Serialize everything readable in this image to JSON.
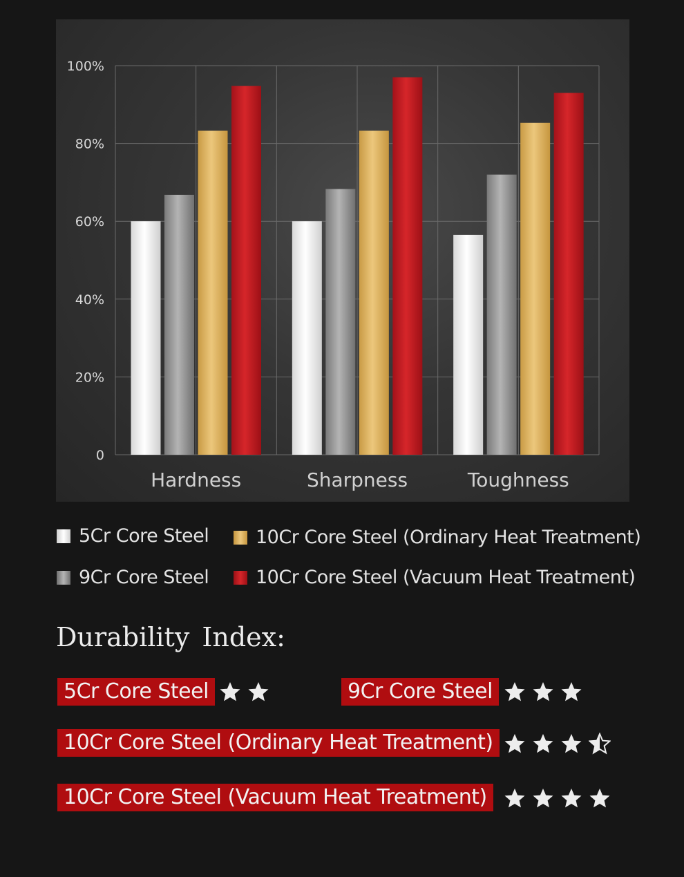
{
  "chart_data": {
    "type": "bar",
    "categories": [
      "Hardness",
      "Sharpness",
      "Toughness"
    ],
    "series": [
      {
        "name": "5Cr Core Steel",
        "values": [
          60,
          60,
          56.5
        ]
      },
      {
        "name": "9Cr Core Steel",
        "values": [
          66.8,
          68.3,
          72
        ]
      },
      {
        "name": "10Cr Core Steel (Ordinary Heat Treatment)",
        "values": [
          83.3,
          83.3,
          85.3
        ]
      },
      {
        "name": "10Cr Core Steel (Vacuum Heat Treatment)",
        "values": [
          94.8,
          97,
          93
        ]
      }
    ],
    "ylim": [
      0,
      100
    ],
    "yticks": [
      "100%",
      "80%",
      "60%",
      "40%",
      "20%",
      "0"
    ],
    "ytick_values": [
      100,
      80,
      60,
      40,
      20,
      0
    ],
    "grid": true,
    "legend_position": "bottom",
    "title": "",
    "xlabel": "",
    "ylabel": ""
  },
  "colors": {
    "white_steel": "#f2f2f2",
    "grey_steel": "#9a9a9a",
    "gold": "#e0b865",
    "red": "#c31c20",
    "label_bg": "#b00d10"
  },
  "legend": [
    {
      "label": "5Cr Core Steel",
      "color": "white"
    },
    {
      "label": "10Cr Core Steel (Ordinary Heat Treatment)",
      "color": "gold"
    },
    {
      "label": "9Cr Core Steel",
      "color": "grey"
    },
    {
      "label": "10Cr Core Steel (Vacuum Heat Treatment)",
      "color": "red"
    }
  ],
  "durability": {
    "title": "Durability  Index:",
    "items": [
      {
        "label": "5Cr  Core Steel",
        "rating": 2
      },
      {
        "label": "9Cr Core Steel",
        "rating": 3
      },
      {
        "label": "10Cr  Core Steel (Ordinary Heat Treatment)",
        "rating": 3.5
      },
      {
        "label": "10Cr  Core Steel (Vacuum Heat Treatment)",
        "rating": 4
      }
    ],
    "star_icon": "star-icon"
  }
}
